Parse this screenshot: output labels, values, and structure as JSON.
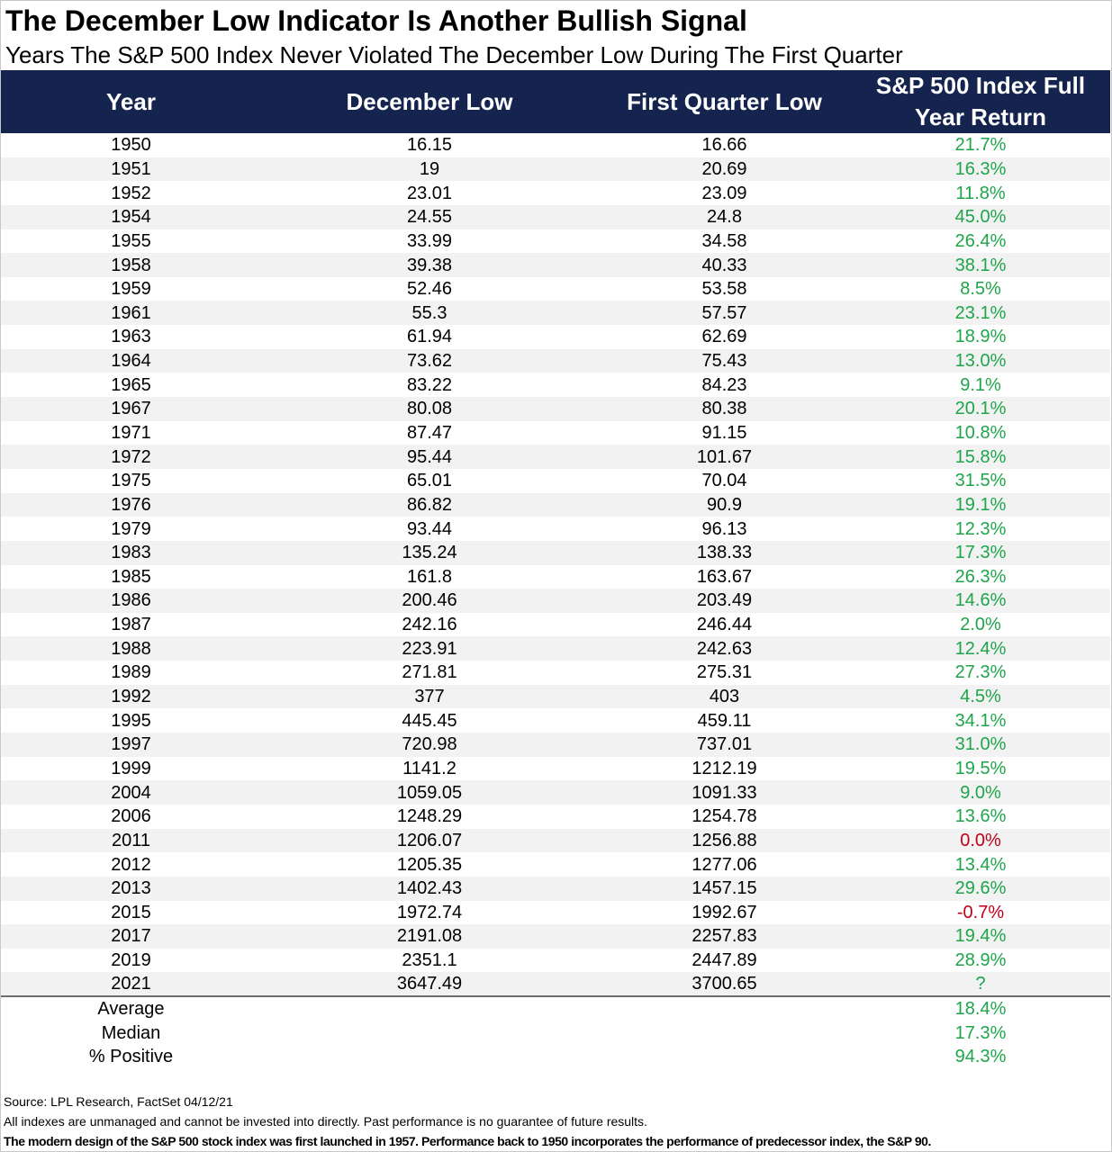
{
  "title": "The December Low Indicator Is Another Bullish Signal",
  "subtitle": "Years The S&P 500 Index Never Violated The December Low During The First Quarter",
  "colors": {
    "header_bg": "#14244e",
    "positive": "#1ea54a",
    "negative": "#c0001a",
    "stripe": "#f2f2f2"
  },
  "chart_data": {
    "type": "table",
    "columns": [
      "Year",
      "December Low",
      "First Quarter Low",
      "S&P 500 Index Full Year Return"
    ],
    "rows": [
      [
        "1950",
        "16.15",
        "16.66",
        "21.7%"
      ],
      [
        "1951",
        "19",
        "20.69",
        "16.3%"
      ],
      [
        "1952",
        "23.01",
        "23.09",
        "11.8%"
      ],
      [
        "1954",
        "24.55",
        "24.8",
        "45.0%"
      ],
      [
        "1955",
        "33.99",
        "34.58",
        "26.4%"
      ],
      [
        "1958",
        "39.38",
        "40.33",
        "38.1%"
      ],
      [
        "1959",
        "52.46",
        "53.58",
        "8.5%"
      ],
      [
        "1961",
        "55.3",
        "57.57",
        "23.1%"
      ],
      [
        "1963",
        "61.94",
        "62.69",
        "18.9%"
      ],
      [
        "1964",
        "73.62",
        "75.43",
        "13.0%"
      ],
      [
        "1965",
        "83.22",
        "84.23",
        "9.1%"
      ],
      [
        "1967",
        "80.08",
        "80.38",
        "20.1%"
      ],
      [
        "1971",
        "87.47",
        "91.15",
        "10.8%"
      ],
      [
        "1972",
        "95.44",
        "101.67",
        "15.8%"
      ],
      [
        "1975",
        "65.01",
        "70.04",
        "31.5%"
      ],
      [
        "1976",
        "86.82",
        "90.9",
        "19.1%"
      ],
      [
        "1979",
        "93.44",
        "96.13",
        "12.3%"
      ],
      [
        "1983",
        "135.24",
        "138.33",
        "17.3%"
      ],
      [
        "1985",
        "161.8",
        "163.67",
        "26.3%"
      ],
      [
        "1986",
        "200.46",
        "203.49",
        "14.6%"
      ],
      [
        "1987",
        "242.16",
        "246.44",
        "2.0%"
      ],
      [
        "1988",
        "223.91",
        "242.63",
        "12.4%"
      ],
      [
        "1989",
        "271.81",
        "275.31",
        "27.3%"
      ],
      [
        "1992",
        "377",
        "403",
        "4.5%"
      ],
      [
        "1995",
        "445.45",
        "459.11",
        "34.1%"
      ],
      [
        "1997",
        "720.98",
        "737.01",
        "31.0%"
      ],
      [
        "1999",
        "1141.2",
        "1212.19",
        "19.5%"
      ],
      [
        "2004",
        "1059.05",
        "1091.33",
        "9.0%"
      ],
      [
        "2006",
        "1248.29",
        "1254.78",
        "13.6%"
      ],
      [
        "2011",
        "1206.07",
        "1256.88",
        "0.0%"
      ],
      [
        "2012",
        "1205.35",
        "1277.06",
        "13.4%"
      ],
      [
        "2013",
        "1402.43",
        "1457.15",
        "29.6%"
      ],
      [
        "2015",
        "1972.74",
        "1992.67",
        "-0.7%"
      ],
      [
        "2017",
        "2191.08",
        "2257.83",
        "19.4%"
      ],
      [
        "2019",
        "2351.1",
        "2447.89",
        "28.9%"
      ],
      [
        "2021",
        "3647.49",
        "3700.65",
        "?"
      ]
    ],
    "negative_rows": [
      "2011",
      "2015"
    ],
    "summary": [
      [
        "Average",
        "18.4%"
      ],
      [
        "Median",
        "17.3%"
      ],
      [
        "% Positive",
        "94.3%"
      ]
    ]
  },
  "footer": {
    "source": "Source: LPL Research, FactSet 04/12/21",
    "disclaimer": "All indexes are unmanaged and cannot be invested into directly. Past performance is no guarantee of future results.",
    "note": "The modern design of the S&P 500 stock index was first launched in 1957. Performance back to 1950 incorporates the performance of predecessor index, the S&P 90."
  }
}
